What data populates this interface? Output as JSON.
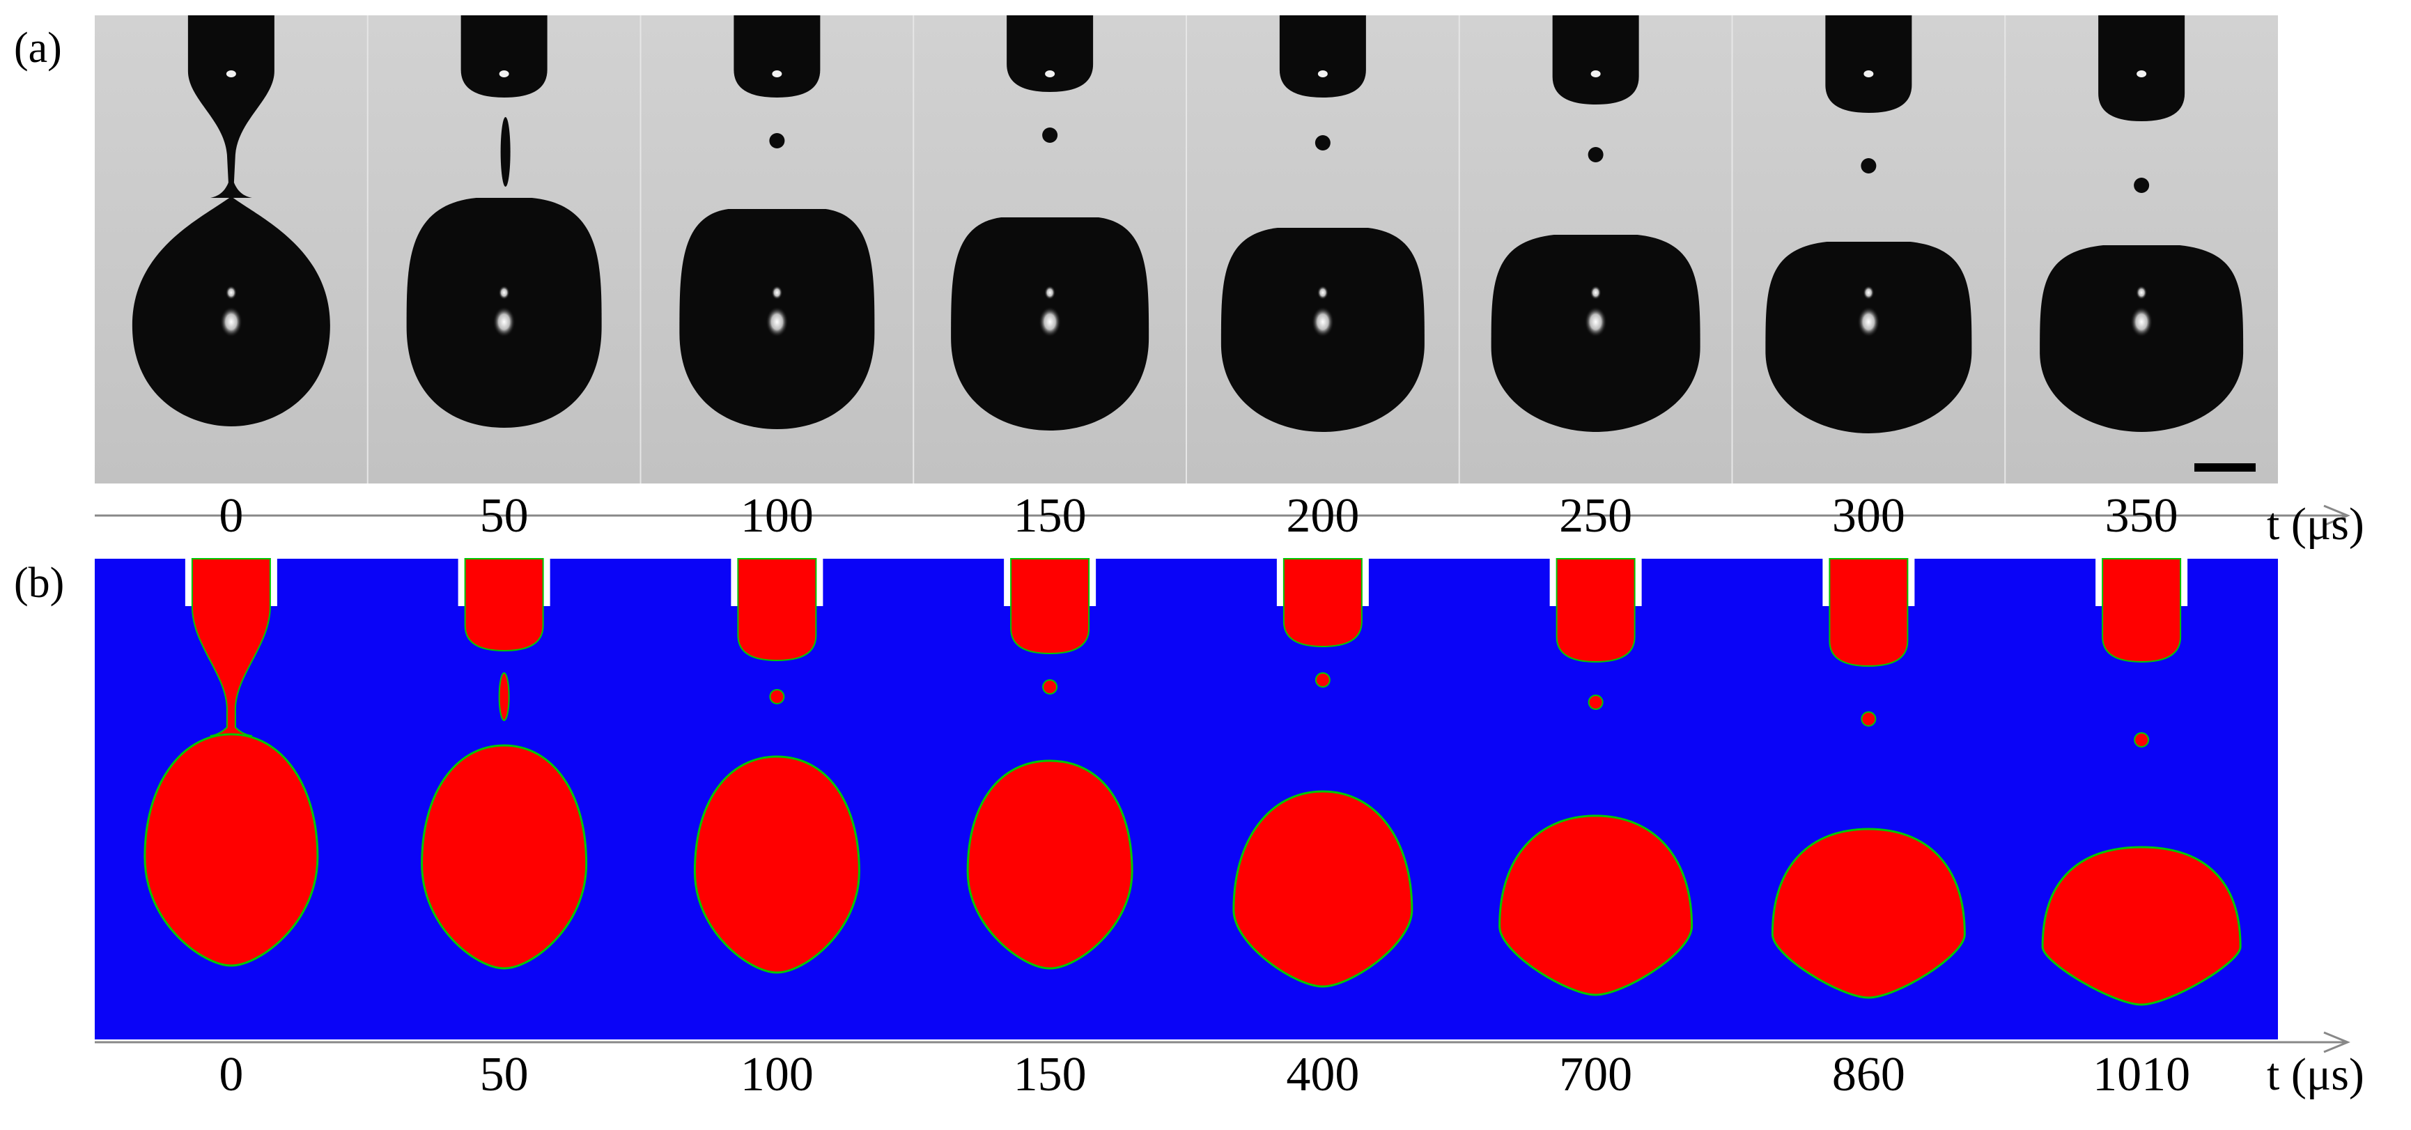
{
  "panel_a": {
    "label": "(a)",
    "type": "high-speed photograph sequence",
    "times": [
      "0",
      "50",
      "100",
      "150",
      "200",
      "250",
      "300",
      "350"
    ],
    "axis_label": "t (μs)",
    "scale_bar": "scale bar (length not printed)",
    "colors": {
      "background": "#c9c9c9",
      "liquid": "#0a0a0a",
      "highlight": "#f2f2f2"
    }
  },
  "panel_b": {
    "label": "(b)",
    "type": "numerical simulation sequence",
    "times": [
      "0",
      "50",
      "100",
      "150",
      "400",
      "700",
      "860",
      "1010"
    ],
    "axis_label": "t (μs)",
    "colors": {
      "background": "#0a04f7",
      "liquid": "#ff0000",
      "interface": "#00c800",
      "nozzle_wall": "#ffffff"
    }
  }
}
